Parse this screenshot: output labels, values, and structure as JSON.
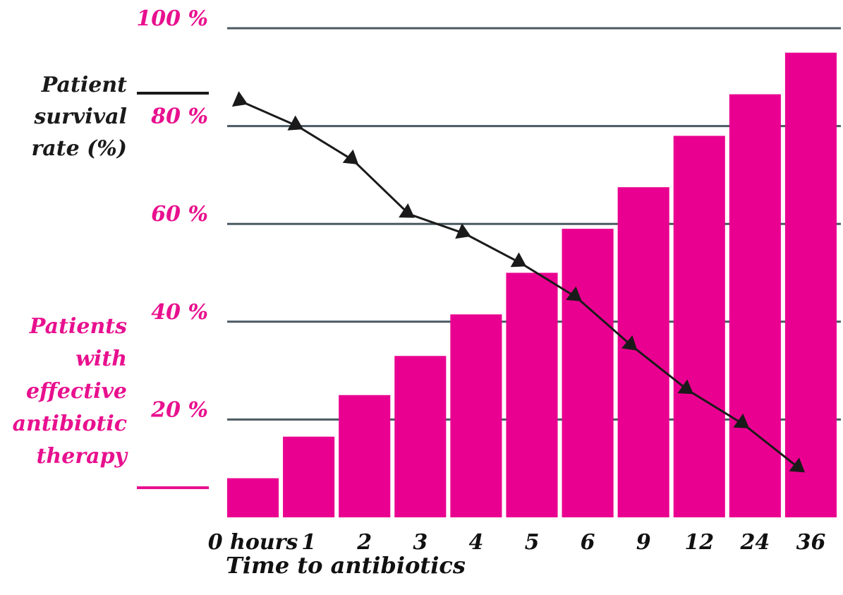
{
  "colors": {
    "bar": "#EA0090",
    "pink_text": "#E8108E",
    "line": "#1A1A1A",
    "grid": "#4A5A62",
    "dark_text": "#1A1A1A"
  },
  "legend": {
    "survival_label_lines": [
      "Patient",
      "survival",
      "rate (%)"
    ],
    "therapy_label_lines": [
      "Patients",
      "with",
      "effective",
      "antibiotic",
      "therapy"
    ]
  },
  "chart_data": {
    "type": "bar",
    "title": "",
    "xlabel": "Time to antibiotics",
    "ylabel": "",
    "categories": [
      "0 hours",
      "1",
      "2",
      "3",
      "4",
      "5",
      "6",
      "9",
      "12",
      "24",
      "36"
    ],
    "ylim": [
      0,
      100
    ],
    "yticks": [
      20,
      40,
      60,
      80,
      100
    ],
    "ytick_labels": [
      "20 %",
      "40 %",
      "60 %",
      "80 %",
      "100 %"
    ],
    "grid": true,
    "series": [
      {
        "name": "Patients with effective antibiotic therapy",
        "kind": "bar",
        "values": [
          8,
          16.5,
          25,
          33,
          41.5,
          50,
          59,
          67.5,
          78,
          86.5,
          95
        ]
      },
      {
        "name": "Patient survival rate (%)",
        "kind": "line",
        "marker": "triangle",
        "values": [
          85,
          80,
          73,
          62,
          58,
          52,
          45,
          35,
          26,
          19,
          10
        ]
      }
    ]
  }
}
